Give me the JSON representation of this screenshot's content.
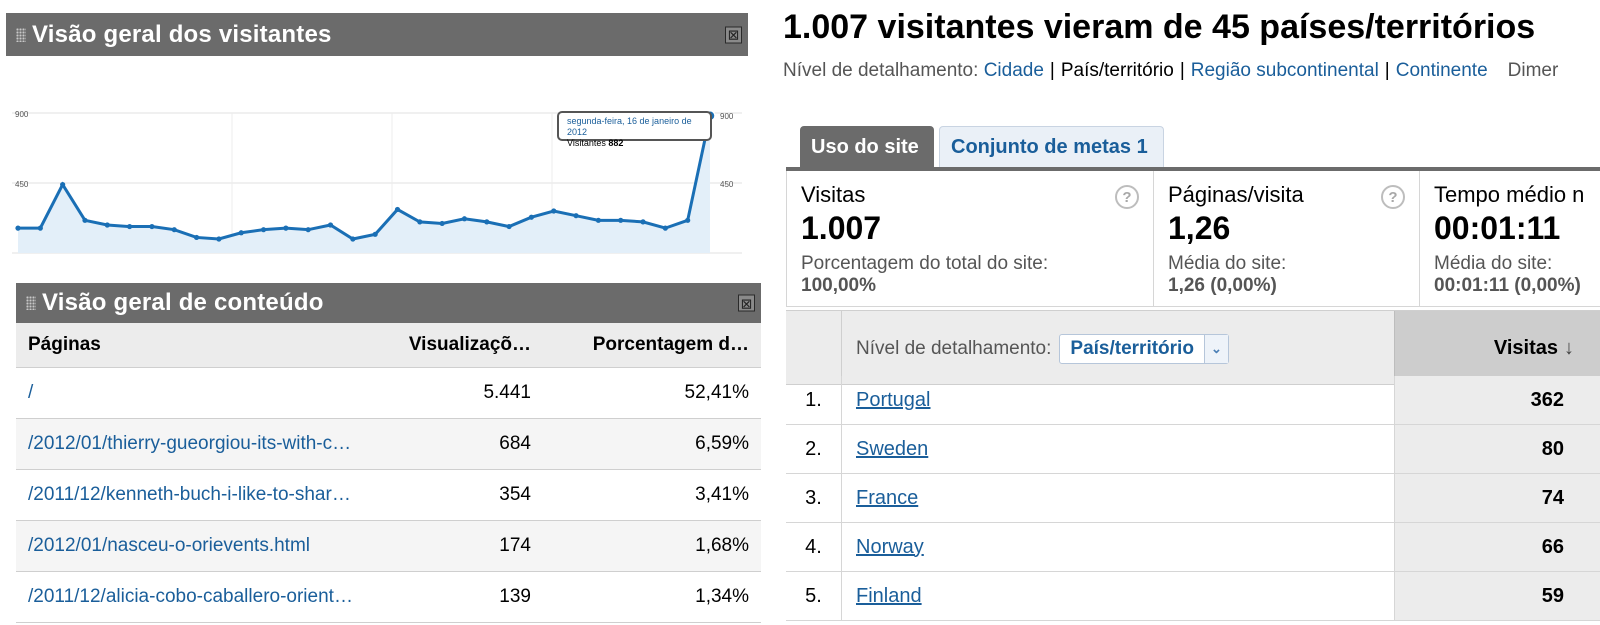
{
  "visitors_widget": {
    "title": "Visão geral dos visitantes",
    "close_glyph": "⊠",
    "tooltip": {
      "date": "segunda-feira, 16 de janeiro de 2012",
      "label": "Visitantes",
      "value": "882"
    }
  },
  "chart_data": {
    "type": "area",
    "y_tick_labels_left": [
      "900",
      "450"
    ],
    "y_tick_labels_right": [
      "900",
      "450"
    ],
    "ylim": [
      0,
      900
    ],
    "values": [
      160,
      160,
      440,
      210,
      180,
      170,
      170,
      150,
      100,
      90,
      130,
      150,
      160,
      150,
      180,
      90,
      120,
      280,
      200,
      190,
      220,
      200,
      170,
      230,
      270,
      240,
      210,
      210,
      200,
      160,
      210,
      882
    ],
    "grid": true,
    "line_color": "#1a6fb5",
    "fill_color": "#e3eff9"
  },
  "content_widget": {
    "title": "Visão geral de conteúdo",
    "close_glyph": "⊠",
    "columns": [
      "Páginas",
      "Visualizaçõ…",
      "Porcentagem d…"
    ],
    "rows": [
      {
        "page": "/",
        "views": "5.441",
        "pct": "52,41%"
      },
      {
        "page": "/2012/01/thierry-gueorgiou-its-with-c…",
        "views": "684",
        "pct": "6,59%"
      },
      {
        "page": "/2011/12/kenneth-buch-i-like-to-shar…",
        "views": "354",
        "pct": "3,41%"
      },
      {
        "page": "/2012/01/nasceu-o-orievents.html",
        "views": "174",
        "pct": "1,68%"
      },
      {
        "page": "/2011/12/alicia-cobo-caballero-orient…",
        "views": "139",
        "pct": "1,34%"
      }
    ]
  },
  "report": {
    "title": "1.007 visitantes vieram de 45 países/territórios",
    "detail_label": "Nível de detalhamento:",
    "detail_links": [
      "Cidade",
      "País/território",
      "Região subcontinental",
      "Continente"
    ],
    "detail_current": "País/território",
    "detail_extra": "Dimer",
    "tabs": [
      "Uso do site",
      "Conjunto de metas 1"
    ],
    "metrics": [
      {
        "label": "Visitas",
        "value": "1.007",
        "sub": "Porcentagem do total do site:",
        "subval": "100,00%"
      },
      {
        "label": "Páginas/visita",
        "value": "1,26",
        "sub": "Média do site:",
        "subval": "1,26 (0,00%)"
      },
      {
        "label": "Tempo médio n",
        "value": "00:01:11",
        "sub": "Média do site:",
        "subval": "00:01:11 (0,00%)"
      }
    ],
    "help_glyph": "?",
    "table": {
      "dimension_label": "Nível de detalhamento:",
      "dimension_value": "País/território",
      "dimension_chevron": "⌄",
      "visits_header": "Visitas",
      "sort_glyph": "↓",
      "rows": [
        {
          "rank": "1.",
          "country": "Portugal",
          "visits": "362"
        },
        {
          "rank": "2.",
          "country": "Sweden",
          "visits": "80"
        },
        {
          "rank": "3.",
          "country": "France",
          "visits": "74"
        },
        {
          "rank": "4.",
          "country": "Norway",
          "visits": "66"
        },
        {
          "rank": "5.",
          "country": "Finland",
          "visits": "59"
        }
      ]
    }
  }
}
